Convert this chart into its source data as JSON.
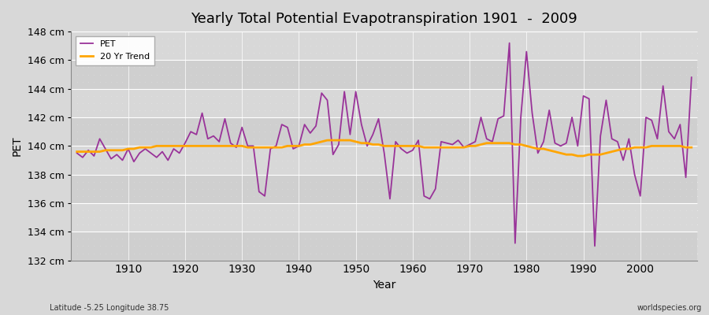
{
  "title": "Yearly Total Potential Evapotranspiration 1901  -  2009",
  "xlabel": "Year",
  "ylabel": "PET",
  "bottom_left": "Latitude -5.25 Longitude 38.75",
  "bottom_right": "worldspecies.org",
  "pet_color": "#993399",
  "trend_color": "#FFA500",
  "bg_color": "#D8D8D8",
  "plot_bg_color": "#D8D8D8",
  "grid_color": "#BBBBBB",
  "ylim": [
    132,
    148
  ],
  "yticks": [
    132,
    134,
    136,
    138,
    140,
    142,
    144,
    146,
    148
  ],
  "xlim_min": 1900,
  "xlim_max": 2010,
  "xticks": [
    1910,
    1920,
    1930,
    1940,
    1950,
    1960,
    1970,
    1980,
    1990,
    2000
  ],
  "years": [
    1901,
    1902,
    1903,
    1904,
    1905,
    1906,
    1907,
    1908,
    1909,
    1910,
    1911,
    1912,
    1913,
    1914,
    1915,
    1916,
    1917,
    1918,
    1919,
    1920,
    1921,
    1922,
    1923,
    1924,
    1925,
    1926,
    1927,
    1928,
    1929,
    1930,
    1931,
    1932,
    1933,
    1934,
    1935,
    1936,
    1937,
    1938,
    1939,
    1940,
    1941,
    1942,
    1943,
    1944,
    1945,
    1946,
    1947,
    1948,
    1949,
    1950,
    1951,
    1952,
    1953,
    1954,
    1955,
    1956,
    1957,
    1958,
    1959,
    1960,
    1961,
    1962,
    1963,
    1964,
    1965,
    1966,
    1967,
    1968,
    1969,
    1970,
    1971,
    1972,
    1973,
    1974,
    1975,
    1976,
    1977,
    1978,
    1979,
    1980,
    1981,
    1982,
    1983,
    1984,
    1985,
    1986,
    1987,
    1988,
    1989,
    1990,
    1991,
    1992,
    1993,
    1994,
    1995,
    1996,
    1997,
    1998,
    1999,
    2000,
    2001,
    2002,
    2003,
    2004,
    2005,
    2006,
    2007,
    2008,
    2009
  ],
  "pet_values": [
    139.5,
    139.2,
    139.7,
    139.3,
    140.5,
    139.8,
    139.1,
    139.4,
    139.0,
    139.8,
    138.9,
    139.5,
    139.8,
    139.5,
    139.2,
    139.6,
    139.0,
    139.8,
    139.5,
    140.2,
    141.0,
    140.8,
    142.3,
    140.5,
    140.7,
    140.3,
    141.9,
    140.2,
    139.9,
    141.3,
    140.0,
    140.0,
    136.8,
    136.5,
    139.8,
    140.0,
    141.5,
    141.3,
    139.8,
    140.0,
    141.5,
    140.9,
    141.4,
    143.7,
    143.2,
    139.4,
    140.1,
    143.8,
    140.8,
    143.8,
    141.5,
    140.0,
    140.8,
    141.9,
    139.5,
    136.3,
    140.3,
    139.8,
    139.5,
    139.7,
    140.4,
    136.5,
    136.3,
    137.0,
    140.3,
    140.2,
    140.1,
    140.4,
    139.9,
    140.1,
    140.3,
    142.0,
    140.5,
    140.3,
    141.9,
    142.1,
    147.2,
    133.2,
    142.0,
    146.6,
    142.3,
    139.5,
    140.3,
    142.5,
    140.2,
    140.0,
    140.2,
    142.0,
    140.0,
    143.5,
    143.3,
    133.0,
    140.7,
    143.2,
    140.5,
    140.3,
    139.0,
    140.5,
    138.0,
    136.5,
    142.0,
    141.8,
    140.5,
    144.2,
    141.0,
    140.5,
    141.5,
    137.8,
    144.8
  ],
  "trend_values": [
    139.6,
    139.6,
    139.6,
    139.6,
    139.6,
    139.7,
    139.7,
    139.7,
    139.7,
    139.8,
    139.8,
    139.9,
    139.9,
    139.9,
    140.0,
    140.0,
    140.0,
    140.0,
    140.0,
    140.0,
    140.0,
    140.0,
    140.0,
    140.0,
    140.0,
    140.0,
    140.0,
    140.0,
    140.0,
    140.0,
    139.9,
    139.9,
    139.9,
    139.9,
    139.9,
    139.9,
    139.9,
    140.0,
    140.0,
    140.0,
    140.1,
    140.1,
    140.2,
    140.3,
    140.4,
    140.4,
    140.4,
    140.4,
    140.4,
    140.3,
    140.2,
    140.2,
    140.1,
    140.1,
    140.0,
    140.0,
    140.0,
    140.0,
    140.0,
    140.0,
    140.0,
    139.9,
    139.9,
    139.9,
    139.9,
    139.9,
    139.9,
    139.9,
    139.9,
    140.0,
    140.0,
    140.1,
    140.2,
    140.2,
    140.2,
    140.2,
    140.2,
    140.1,
    140.1,
    140.0,
    139.9,
    139.8,
    139.8,
    139.7,
    139.6,
    139.5,
    139.4,
    139.4,
    139.3,
    139.3,
    139.4,
    139.4,
    139.4,
    139.5,
    139.6,
    139.7,
    139.8,
    139.8,
    139.9,
    139.9,
    139.9,
    140.0,
    140.0,
    140.0,
    140.0,
    140.0,
    140.0,
    139.9,
    139.9
  ]
}
